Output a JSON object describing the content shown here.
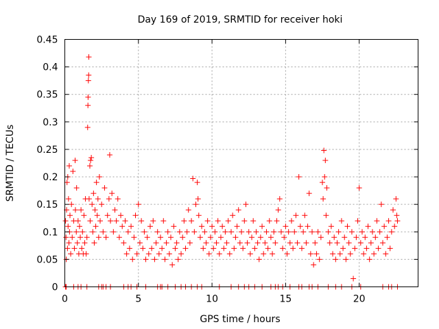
{
  "chart_data": {
    "type": "scatter",
    "title": "Day 169 of 2019, SRMTID for receiver hoki",
    "xlabel": "GPS time / hours",
    "ylabel": "SRMTID / TECUs",
    "xlim": [
      0,
      24
    ],
    "ylim": [
      0,
      0.45
    ],
    "xticks": [
      0,
      5,
      10,
      15,
      20
    ],
    "xtick_labels": [
      "0",
      "5",
      "10",
      "15",
      "20"
    ],
    "yticks": [
      0,
      0.05,
      0.1,
      0.15,
      0.2,
      0.25,
      0.3,
      0.35,
      0.4,
      0.45
    ],
    "ytick_labels": [
      "0",
      "0.05",
      "0.1",
      "0.15",
      "0.2",
      "0.25",
      "0.3",
      "0.35",
      "0.4",
      "0.45"
    ],
    "grid": true,
    "marker": "plus",
    "color": "#ff0000",
    "series": [
      {
        "name": "SRMTID",
        "points": [
          [
            0.05,
            0.12
          ],
          [
            0.08,
            0.09
          ],
          [
            0.1,
            0.05
          ],
          [
            0.12,
            0.14
          ],
          [
            0.15,
            0.19
          ],
          [
            0.18,
            0.07
          ],
          [
            0.2,
            0.2
          ],
          [
            0.22,
            0.11
          ],
          [
            0.25,
            0.16
          ],
          [
            0.28,
            0.08
          ],
          [
            0.3,
            0.22
          ],
          [
            0.32,
            0.1
          ],
          [
            0.35,
            0.13
          ],
          [
            0.4,
            0.06
          ],
          [
            0.45,
            0.15
          ],
          [
            0.5,
            0.09
          ],
          [
            0.55,
            0.21
          ],
          [
            0.6,
            0.12
          ],
          [
            0.65,
            0.07
          ],
          [
            0.7,
            0.23
          ],
          [
            0.72,
            0.14
          ],
          [
            0.78,
            0.1
          ],
          [
            0.8,
            0.18
          ],
          [
            0.85,
            0.08
          ],
          [
            0.9,
            0.12
          ],
          [
            0.95,
            0.06
          ],
          [
            1.0,
            0.11
          ],
          [
            1.05,
            0.09
          ],
          [
            1.1,
            0.14
          ],
          [
            1.15,
            0.07
          ],
          [
            1.2,
            0.1
          ],
          [
            1.25,
            0.06
          ],
          [
            1.3,
            0.13
          ],
          [
            1.35,
            0.08
          ],
          [
            1.4,
            0.16
          ],
          [
            1.45,
            0.06
          ],
          [
            1.5,
            0.09
          ],
          [
            1.55,
            0.29
          ],
          [
            1.57,
            0.33
          ],
          [
            1.58,
            0.345
          ],
          [
            1.6,
            0.375
          ],
          [
            1.62,
            0.385
          ],
          [
            1.63,
            0.418
          ],
          [
            1.65,
            0.16
          ],
          [
            1.7,
            0.22
          ],
          [
            1.72,
            0.12
          ],
          [
            1.75,
            0.23
          ],
          [
            1.8,
            0.235
          ],
          [
            1.85,
            0.15
          ],
          [
            1.9,
            0.1
          ],
          [
            1.95,
            0.17
          ],
          [
            2.0,
            0.08
          ],
          [
            2.05,
            0.14
          ],
          [
            2.1,
            0.11
          ],
          [
            2.15,
            0.19
          ],
          [
            2.2,
            0.13
          ],
          [
            2.25,
            0.16
          ],
          [
            2.3,
            0.09
          ],
          [
            2.35,
            0.2
          ],
          [
            2.4,
            0.12
          ],
          [
            2.5,
            0.15
          ],
          [
            2.6,
            0.1
          ],
          [
            2.7,
            0.18
          ],
          [
            2.8,
            0.09
          ],
          [
            2.9,
            0.13
          ],
          [
            3.0,
            0.16
          ],
          [
            3.05,
            0.24
          ],
          [
            3.1,
            0.12
          ],
          [
            3.2,
            0.17
          ],
          [
            3.3,
            0.1
          ],
          [
            3.4,
            0.14
          ],
          [
            3.5,
            0.12
          ],
          [
            3.6,
            0.16
          ],
          [
            3.7,
            0.09
          ],
          [
            3.8,
            0.13
          ],
          [
            3.9,
            0.11
          ],
          [
            4.0,
            0.08
          ],
          [
            4.1,
            0.12
          ],
          [
            4.2,
            0.06
          ],
          [
            4.3,
            0.1
          ],
          [
            4.4,
            0.07
          ],
          [
            4.5,
            0.11
          ],
          [
            4.6,
            0.05
          ],
          [
            4.7,
            0.09
          ],
          [
            4.8,
            0.13
          ],
          [
            4.9,
            0.06
          ],
          [
            5.0,
            0.15
          ],
          [
            5.1,
            0.08
          ],
          [
            5.2,
            0.12
          ],
          [
            5.3,
            0.07
          ],
          [
            5.4,
            0.1
          ],
          [
            5.5,
            0.05
          ],
          [
            5.6,
            0.09
          ],
          [
            5.7,
            0.06
          ],
          [
            5.8,
            0.11
          ],
          [
            5.9,
            0.07
          ],
          [
            6.0,
            0.12
          ],
          [
            6.1,
            0.05
          ],
          [
            6.2,
            0.08
          ],
          [
            6.3,
            0.1
          ],
          [
            6.4,
            0.06
          ],
          [
            6.5,
            0.09
          ],
          [
            6.6,
            0.07
          ],
          [
            6.7,
            0.12
          ],
          [
            6.8,
            0.05
          ],
          [
            6.9,
            0.08
          ],
          [
            7.0,
            0.1
          ],
          [
            7.1,
            0.06
          ],
          [
            7.2,
            0.09
          ],
          [
            7.3,
            0.04
          ],
          [
            7.4,
            0.11
          ],
          [
            7.5,
            0.07
          ],
          [
            7.6,
            0.08
          ],
          [
            7.7,
            0.05
          ],
          [
            7.8,
            0.1
          ],
          [
            7.9,
            0.06
          ],
          [
            8.0,
            0.09
          ],
          [
            8.1,
            0.12
          ],
          [
            8.2,
            0.07
          ],
          [
            8.3,
            0.1
          ],
          [
            8.4,
            0.14
          ],
          [
            8.5,
            0.08
          ],
          [
            8.6,
            0.12
          ],
          [
            8.7,
            0.197
          ],
          [
            8.8,
            0.1
          ],
          [
            8.9,
            0.15
          ],
          [
            9.0,
            0.19
          ],
          [
            9.05,
            0.16
          ],
          [
            9.1,
            0.13
          ],
          [
            9.2,
            0.09
          ],
          [
            9.3,
            0.11
          ],
          [
            9.4,
            0.07
          ],
          [
            9.5,
            0.1
          ],
          [
            9.6,
            0.08
          ],
          [
            9.7,
            0.12
          ],
          [
            9.8,
            0.06
          ],
          [
            9.9,
            0.09
          ],
          [
            10.0,
            0.11
          ],
          [
            10.1,
            0.07
          ],
          [
            10.2,
            0.1
          ],
          [
            10.3,
            0.08
          ],
          [
            10.4,
            0.12
          ],
          [
            10.5,
            0.06
          ],
          [
            10.6,
            0.09
          ],
          [
            10.7,
            0.11
          ],
          [
            10.8,
            0.07
          ],
          [
            10.9,
            0.1
          ],
          [
            11.0,
            0.08
          ],
          [
            11.1,
            0.12
          ],
          [
            11.2,
            0.06
          ],
          [
            11.3,
            0.1
          ],
          [
            11.4,
            0.13
          ],
          [
            11.5,
            0.07
          ],
          [
            11.6,
            0.09
          ],
          [
            11.7,
            0.11
          ],
          [
            11.8,
            0.14
          ],
          [
            11.9,
            0.08
          ],
          [
            12.0,
            0.1
          ],
          [
            12.1,
            0.07
          ],
          [
            12.2,
            0.12
          ],
          [
            12.3,
            0.15
          ],
          [
            12.4,
            0.08
          ],
          [
            12.5,
            0.1
          ],
          [
            12.6,
            0.06
          ],
          [
            12.7,
            0.09
          ],
          [
            12.8,
            0.12
          ],
          [
            12.9,
            0.07
          ],
          [
            13.0,
            0.1
          ],
          [
            13.1,
            0.08
          ],
          [
            13.2,
            0.05
          ],
          [
            13.3,
            0.09
          ],
          [
            13.4,
            0.11
          ],
          [
            13.5,
            0.06
          ],
          [
            13.6,
            0.08
          ],
          [
            13.7,
            0.1
          ],
          [
            13.8,
            0.07
          ],
          [
            13.9,
            0.12
          ],
          [
            14.0,
            0.09
          ],
          [
            14.1,
            0.06
          ],
          [
            14.2,
            0.1
          ],
          [
            14.3,
            0.08
          ],
          [
            14.4,
            0.12
          ],
          [
            14.5,
            0.14
          ],
          [
            14.6,
            0.16
          ],
          [
            14.7,
            0.1
          ],
          [
            14.8,
            0.07
          ],
          [
            14.9,
            0.09
          ],
          [
            15.0,
            0.11
          ],
          [
            15.1,
            0.06
          ],
          [
            15.2,
            0.1
          ],
          [
            15.3,
            0.08
          ],
          [
            15.4,
            0.12
          ],
          [
            15.5,
            0.07
          ],
          [
            15.6,
            0.1
          ],
          [
            15.7,
            0.13
          ],
          [
            15.8,
            0.08
          ],
          [
            15.9,
            0.2
          ],
          [
            16.0,
            0.11
          ],
          [
            16.1,
            0.07
          ],
          [
            16.2,
            0.1
          ],
          [
            16.3,
            0.13
          ],
          [
            16.4,
            0.08
          ],
          [
            16.5,
            0.11
          ],
          [
            16.6,
            0.17
          ],
          [
            16.7,
            0.06
          ],
          [
            16.8,
            0.1
          ],
          [
            16.9,
            0.04
          ],
          [
            17.0,
            0.08
          ],
          [
            17.1,
            0.06
          ],
          [
            17.2,
            0.1
          ],
          [
            17.3,
            0.05
          ],
          [
            17.4,
            0.09
          ],
          [
            17.5,
            0.19
          ],
          [
            17.55,
            0.16
          ],
          [
            17.6,
            0.248
          ],
          [
            17.65,
            0.2
          ],
          [
            17.7,
            0.23
          ],
          [
            17.75,
            0.13
          ],
          [
            17.8,
            0.18
          ],
          [
            17.9,
            0.1
          ],
          [
            18.0,
            0.08
          ],
          [
            18.1,
            0.11
          ],
          [
            18.2,
            0.06
          ],
          [
            18.3,
            0.09
          ],
          [
            18.4,
            0.05
          ],
          [
            18.5,
            0.08
          ],
          [
            18.6,
            0.1
          ],
          [
            18.7,
            0.06
          ],
          [
            18.8,
            0.12
          ],
          [
            18.9,
            0.07
          ],
          [
            19.0,
            0.09
          ],
          [
            19.1,
            0.05
          ],
          [
            19.2,
            0.11
          ],
          [
            19.3,
            0.08
          ],
          [
            19.4,
            0.06
          ],
          [
            19.5,
            0.1
          ],
          [
            19.6,
            0.015
          ],
          [
            19.7,
            0.07
          ],
          [
            19.8,
            0.09
          ],
          [
            19.9,
            0.12
          ],
          [
            20.0,
            0.18
          ],
          [
            20.1,
            0.08
          ],
          [
            20.2,
            0.1
          ],
          [
            20.3,
            0.06
          ],
          [
            20.4,
            0.09
          ],
          [
            20.5,
            0.07
          ],
          [
            20.6,
            0.11
          ],
          [
            20.7,
            0.05
          ],
          [
            20.8,
            0.08
          ],
          [
            20.9,
            0.1
          ],
          [
            21.0,
            0.06
          ],
          [
            21.1,
            0.09
          ],
          [
            21.2,
            0.12
          ],
          [
            21.3,
            0.07
          ],
          [
            21.4,
            0.1
          ],
          [
            21.5,
            0.15
          ],
          [
            21.6,
            0.08
          ],
          [
            21.7,
            0.11
          ],
          [
            21.8,
            0.06
          ],
          [
            21.9,
            0.09
          ],
          [
            22.0,
            0.12
          ],
          [
            22.1,
            0.07
          ],
          [
            22.2,
            0.1
          ],
          [
            22.3,
            0.14
          ],
          [
            22.4,
            0.11
          ],
          [
            22.5,
            0.16
          ],
          [
            22.55,
            0.13
          ],
          [
            22.6,
            0.12
          ]
        ],
        "zero_points": [
          0.05,
          0.1,
          0.6,
          0.9,
          1.1,
          1.5,
          2.3,
          2.5,
          2.6,
          2.8,
          3.1,
          4.0,
          4.3,
          4.5,
          4.9,
          5.5,
          6.3,
          6.5,
          6.6,
          7.0,
          7.5,
          7.9,
          8.2,
          8.6,
          9.0,
          9.3,
          10.5,
          11.3,
          11.8,
          12.2,
          12.5,
          12.9,
          13.4,
          14.0,
          14.3,
          14.5,
          14.8,
          15.3,
          15.9,
          16.1,
          16.6,
          16.8,
          17.2,
          17.9,
          18.4,
          18.8,
          19.5,
          20.1,
          21.6,
          22.0,
          22.2,
          22.6
        ]
      }
    ]
  }
}
